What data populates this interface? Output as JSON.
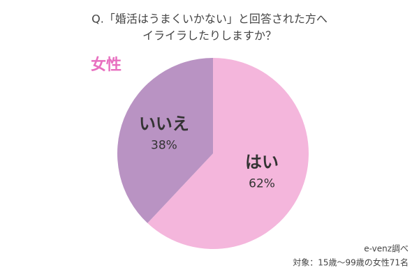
{
  "chart_data": {
    "type": "pie",
    "title": [
      "Q.「婚活はうまくいかない」と回答された方へ",
      "イライラしたりしますか？"
    ],
    "subtitle": "女性",
    "categories": [
      "はい",
      "いいえ"
    ],
    "values": [
      62,
      38
    ],
    "value_labels": [
      "62%",
      "38%"
    ],
    "colors": [
      "#f4b6dc",
      "#b993c3"
    ],
    "notes": [
      "e-venz調べ",
      "対象：15歳～99歳の女性71名"
    ]
  }
}
